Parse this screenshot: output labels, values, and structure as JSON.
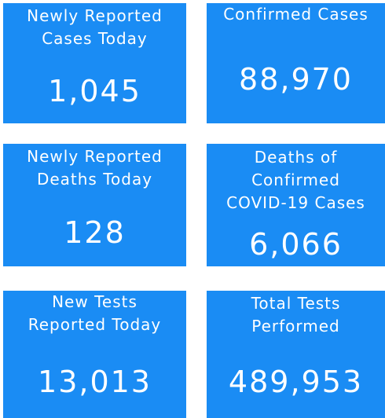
{
  "tiles": [
    {
      "label_lines": [
        "Newly Reported",
        "Cases Today"
      ],
      "value": "1,045"
    },
    {
      "label_lines": [
        "Confirmed Cases"
      ],
      "value": "88,970"
    },
    {
      "label_lines": [
        "Newly Reported",
        "Deaths Today"
      ],
      "value": "128"
    },
    {
      "label_lines": [
        "Deaths of",
        "Confirmed",
        "COVID-19 Cases"
      ],
      "value": "6,066"
    },
    {
      "label_lines": [
        "New Tests",
        "Reported Today"
      ],
      "value": "13,013"
    },
    {
      "label_lines": [
        "Total Tests",
        "Performed"
      ],
      "value": "489,953"
    }
  ]
}
